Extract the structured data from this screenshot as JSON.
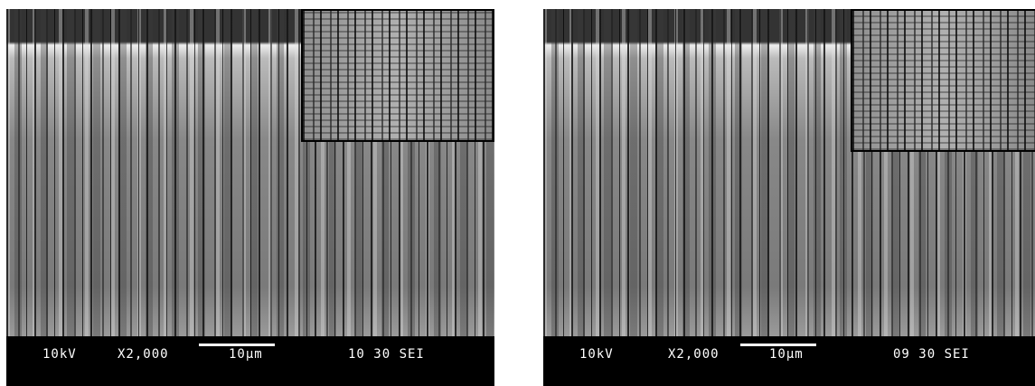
{
  "panels": [
    {
      "voltage": "10kV",
      "magnification": "X2,000",
      "scale": "10μm",
      "info": "10 30 SEI"
    },
    {
      "voltage": "10kV",
      "magnification": "X2,000",
      "scale": "10μm",
      "info": "09 30 SEI"
    }
  ]
}
